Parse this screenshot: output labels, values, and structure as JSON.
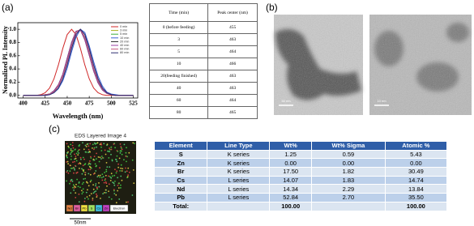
{
  "panel_labels": [
    "(a)",
    "(b)",
    "(c)"
  ],
  "chart_data": {
    "type": "line",
    "y_label": "Normalized PL Intensity",
    "x_label": "Wavelength (nm)",
    "x": [
      400,
      405,
      410,
      415,
      420,
      425,
      430,
      435,
      440,
      445,
      450,
      455,
      460,
      465,
      470,
      475,
      480,
      485,
      490,
      495,
      500,
      505,
      510,
      515,
      520,
      525
    ],
    "series": [
      {
        "name": "0 min",
        "color": "#d02a2a",
        "values": [
          0,
          0,
          0,
          0,
          0.01,
          0.04,
          0.11,
          0.25,
          0.46,
          0.71,
          0.92,
          1,
          0.92,
          0.71,
          0.46,
          0.25,
          0.11,
          0.04,
          0.01,
          0,
          0,
          0,
          0,
          0,
          0,
          0
        ]
      },
      {
        "name": "3 min",
        "color": "#a8b020",
        "values": [
          0,
          0,
          0,
          0,
          0,
          0.01,
          0.02,
          0.07,
          0.16,
          0.32,
          0.56,
          0.8,
          0.97,
          0.99,
          0.84,
          0.61,
          0.37,
          0.19,
          0.08,
          0.03,
          0.01,
          0,
          0,
          0,
          0,
          0
        ]
      },
      {
        "name": "5 min",
        "color": "#3cae3c",
        "values": [
          0,
          0,
          0,
          0,
          0,
          0.01,
          0.02,
          0.05,
          0.14,
          0.29,
          0.51,
          0.75,
          0.95,
          1,
          0.88,
          0.66,
          0.41,
          0.22,
          0.1,
          0.04,
          0.01,
          0,
          0,
          0,
          0,
          0
        ]
      },
      {
        "name": "10 min",
        "color": "#3a5fd0",
        "values": [
          0,
          0,
          0,
          0,
          0,
          0,
          0.01,
          0.04,
          0.1,
          0.22,
          0.41,
          0.66,
          0.88,
          1,
          0.95,
          0.75,
          0.51,
          0.29,
          0.14,
          0.05,
          0.02,
          0.01,
          0,
          0,
          0,
          0
        ]
      },
      {
        "name": "20 min",
        "color": "#222222",
        "values": [
          0,
          0,
          0,
          0,
          0,
          0.01,
          0.02,
          0.07,
          0.16,
          0.32,
          0.56,
          0.8,
          0.97,
          0.99,
          0.84,
          0.61,
          0.37,
          0.19,
          0.08,
          0.03,
          0.01,
          0,
          0,
          0,
          0,
          0
        ]
      },
      {
        "name": "40 min",
        "color": "#9a3fa0",
        "values": [
          0,
          0,
          0,
          0,
          0,
          0.01,
          0.02,
          0.07,
          0.16,
          0.32,
          0.56,
          0.8,
          0.97,
          0.99,
          0.84,
          0.61,
          0.37,
          0.19,
          0.08,
          0.03,
          0.01,
          0,
          0,
          0,
          0,
          0
        ]
      },
      {
        "name": "60 min",
        "color": "#c45a82",
        "values": [
          0,
          0,
          0,
          0,
          0,
          0.01,
          0.02,
          0.05,
          0.14,
          0.29,
          0.51,
          0.75,
          0.95,
          1,
          0.88,
          0.66,
          0.41,
          0.22,
          0.1,
          0.04,
          0.01,
          0,
          0,
          0,
          0,
          0
        ]
      },
      {
        "name": "80 min",
        "color": "#2c2c70",
        "values": [
          0,
          0,
          0,
          0,
          0,
          0,
          0.01,
          0.04,
          0.11,
          0.25,
          0.46,
          0.71,
          0.92,
          1,
          0.92,
          0.71,
          0.46,
          0.25,
          0.11,
          0.04,
          0.01,
          0,
          0,
          0,
          0,
          0
        ]
      }
    ],
    "xlim": [
      394,
      530
    ],
    "xticks": [
      400,
      425,
      450,
      475,
      500,
      525
    ],
    "ylim": [
      -0.04,
      1.1
    ],
    "yticks": [
      {
        "value": 0,
        "label": "0.0"
      },
      0.2,
      0.4,
      0.6,
      0.8,
      {
        "value": 1,
        "label": "1.0"
      }
    ],
    "legend": "upper right"
  },
  "peak_table": {
    "headers": [
      "Time (min)",
      "Peak center (nm)"
    ],
    "rows": [
      [
        "0 (before feeding)",
        "455"
      ],
      [
        "3",
        "463"
      ],
      [
        "5",
        "464"
      ],
      [
        "10",
        "466"
      ],
      [
        "20(feeding finished)",
        "463"
      ],
      [
        "40",
        "463"
      ],
      [
        "60",
        "464"
      ],
      [
        "80",
        "465"
      ]
    ]
  },
  "tem_images": {
    "scale_labels": [
      "50 nm",
      "10 nm"
    ]
  },
  "eds_image": {
    "title": "EDS Layered Image 4",
    "chips": [
      "Nd",
      "Br",
      "Pb",
      "S",
      "Cs",
      "Zn",
      "Electron"
    ],
    "scale": "50nm"
  },
  "eds_table": {
    "headers": [
      "Element",
      "Line Type",
      "Wt%",
      "Wt% Sigma",
      "Atomic %"
    ],
    "rows": [
      [
        "S",
        "K series",
        "1.25",
        "0.59",
        "5.43"
      ],
      [
        "Zn",
        "K series",
        "0.00",
        "0.00",
        "0.00"
      ],
      [
        "Br",
        "K series",
        "17.50",
        "1.82",
        "30.49"
      ],
      [
        "Cs",
        "L series",
        "14.07",
        "1.83",
        "14.74"
      ],
      [
        "Nd",
        "L series",
        "14.34",
        "2.29",
        "13.84"
      ],
      [
        "Pb",
        "L series",
        "52.84",
        "2.70",
        "35.50"
      ]
    ],
    "total": {
      "label": "Total:",
      "wt": "100.00",
      "atomic": "100.00"
    }
  }
}
